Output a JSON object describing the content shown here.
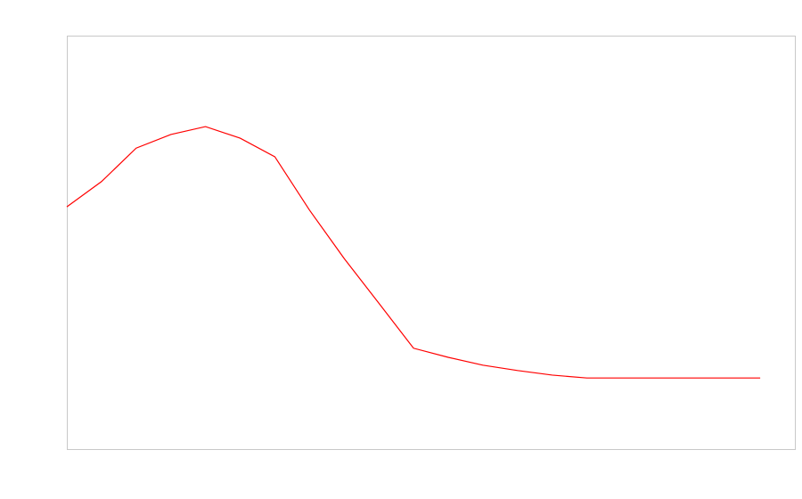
{
  "chart_data": {
    "type": "line",
    "x": [
      0,
      1,
      2,
      3,
      4,
      5,
      6,
      7,
      8,
      9,
      10,
      11,
      12,
      13,
      14,
      15,
      16,
      17,
      18,
      19,
      20
    ],
    "series": [
      {
        "color": "#ff0000",
        "values": [
          58.6,
          64.7,
          72.8,
          76.1,
          78.0,
          75.2,
          70.7,
          57.8,
          46.1,
          35.3,
          24.4,
          22.2,
          20.3,
          19.0,
          17.9,
          17.2,
          17.2,
          17.2,
          17.2,
          17.2,
          17.2
        ]
      }
    ],
    "xlim": [
      0,
      21
    ],
    "ylim": [
      0,
      100
    ],
    "grid": false
  }
}
